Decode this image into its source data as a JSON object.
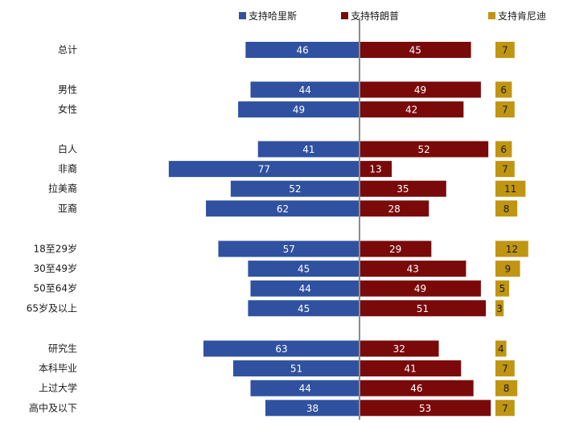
{
  "chart_data": {
    "type": "bar",
    "orientation": "diverging-horizontal",
    "categories": [
      "总计",
      "男性",
      "女性",
      "白人",
      "非裔",
      "拉美裔",
      "亚裔",
      "18至29岁",
      "30至49岁",
      "50至64岁",
      "65岁及以上",
      "研究生",
      "本科毕业",
      "上过大学",
      "高中及以下"
    ],
    "groups": [
      [
        0
      ],
      [
        1,
        2
      ],
      [
        3,
        4,
        5,
        6
      ],
      [
        7,
        8,
        9,
        10
      ],
      [
        11,
        12,
        13,
        14
      ]
    ],
    "series": [
      {
        "name": "支持哈里斯",
        "color": "#2f51a0",
        "values": [
          46,
          44,
          49,
          41,
          77,
          52,
          62,
          57,
          45,
          44,
          45,
          63,
          51,
          44,
          38
        ]
      },
      {
        "name": "支持特朗普",
        "color": "#7a0a0a",
        "values": [
          45,
          49,
          42,
          52,
          13,
          35,
          28,
          29,
          43,
          49,
          51,
          32,
          41,
          46,
          53
        ]
      },
      {
        "name": "支持肯尼迪",
        "color": "#c09512",
        "values": [
          7,
          6,
          7,
          6,
          7,
          11,
          8,
          12,
          9,
          5,
          3,
          4,
          7,
          8,
          7
        ]
      }
    ],
    "legend_position": "top",
    "grid": false
  }
}
